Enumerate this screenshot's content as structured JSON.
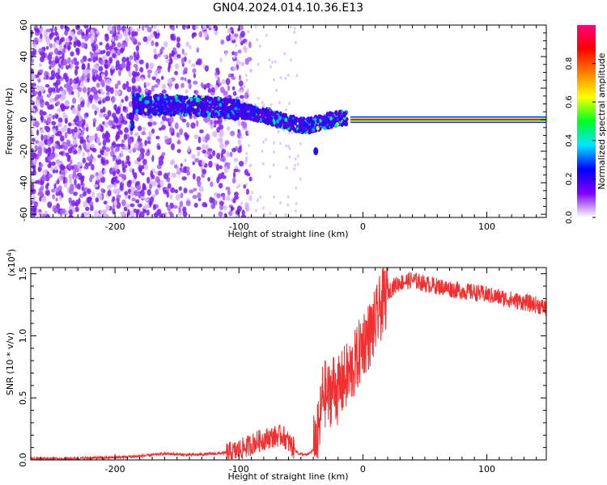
{
  "title": "GN04.2024.014.10.36.E13",
  "colorbar": {
    "label": "Normalized spectral amplitude",
    "ticks": [
      "0.0",
      "0.2",
      "0.4",
      "0.6",
      "0.8"
    ],
    "tick_values": [
      0.0,
      0.2,
      0.4,
      0.6,
      0.8
    ],
    "range": [
      0,
      1
    ],
    "colors": [
      "#ffffff",
      "#8000ff",
      "#0000ff",
      "#00e5ff",
      "#00ff20",
      "#ffff00",
      "#ff8000",
      "#ff0000",
      "#ff0080"
    ]
  },
  "chart_data": [
    {
      "type": "heatmap",
      "xlabel": "Height of straight line (km)",
      "ylabel": "Frequency (Hz)",
      "xlim": [
        -268,
        148
      ],
      "ylim": [
        -62,
        60
      ],
      "x_ticks": [
        "-200",
        "-100",
        "0",
        "100"
      ],
      "x_tick_values": [
        -200,
        -100,
        0,
        100
      ],
      "y_ticks": [
        "60",
        "40",
        "20",
        "0",
        "-20",
        "-40",
        "-60"
      ],
      "y_tick_values": [
        60,
        40,
        20,
        0,
        -20,
        -40,
        -60
      ],
      "features": {
        "noise_region_x": [
          -268,
          -105
        ],
        "track_points": [
          [
            -185,
            10
          ],
          [
            -150,
            9
          ],
          [
            -120,
            8
          ],
          [
            -100,
            6
          ],
          [
            -80,
            3
          ],
          [
            -60,
            -2
          ],
          [
            -45,
            -4
          ],
          [
            -35,
            -2
          ],
          [
            -25,
            0
          ],
          [
            -15,
            1
          ],
          [
            -10,
            0
          ]
        ],
        "constant_line_y": 0,
        "constant_line_x": [
          -10,
          148
        ],
        "isolated_blob": [
          -38,
          -20
        ]
      }
    },
    {
      "type": "line",
      "xlabel": "Height of straight line (km)",
      "ylabel": "SNR (10 * v/v)",
      "y_multiplier_label": "(x10",
      "y_multiplier_exp": "4",
      "y_multiplier_close": ")",
      "xlim": [
        -268,
        148
      ],
      "ylim": [
        0,
        1.55
      ],
      "x_ticks": [
        "-200",
        "-100",
        "0",
        "100"
      ],
      "x_tick_values": [
        -200,
        -100,
        0,
        100
      ],
      "y_ticks": [
        "0.0",
        "0.5",
        "1.0",
        "1.5"
      ],
      "y_tick_values": [
        0.0,
        0.5,
        1.0,
        1.5
      ],
      "color": "#f03030",
      "series": [
        {
          "x": [
            -268,
            -240,
            -200,
            -180,
            -160,
            -140,
            -120,
            -105,
            -95,
            -85,
            -75,
            -65,
            -58,
            -52,
            -45,
            -40,
            -36,
            -32,
            -28,
            -24,
            -20,
            -15,
            -10,
            -5,
            0,
            5,
            10,
            15,
            20,
            25,
            30,
            40,
            50,
            60,
            70,
            80,
            90,
            100,
            110,
            120,
            130,
            140,
            148
          ],
          "y": [
            0.01,
            0.01,
            0.02,
            0.03,
            0.05,
            0.04,
            0.05,
            0.06,
            0.1,
            0.15,
            0.18,
            0.2,
            0.12,
            0.05,
            0.04,
            0.08,
            0.2,
            0.55,
            0.5,
            0.6,
            0.55,
            0.65,
            0.7,
            0.8,
            0.95,
            1.0,
            1.1,
            1.25,
            1.35,
            1.4,
            1.43,
            1.45,
            1.42,
            1.4,
            1.38,
            1.36,
            1.35,
            1.33,
            1.31,
            1.29,
            1.27,
            1.25,
            1.22
          ]
        }
      ]
    }
  ]
}
